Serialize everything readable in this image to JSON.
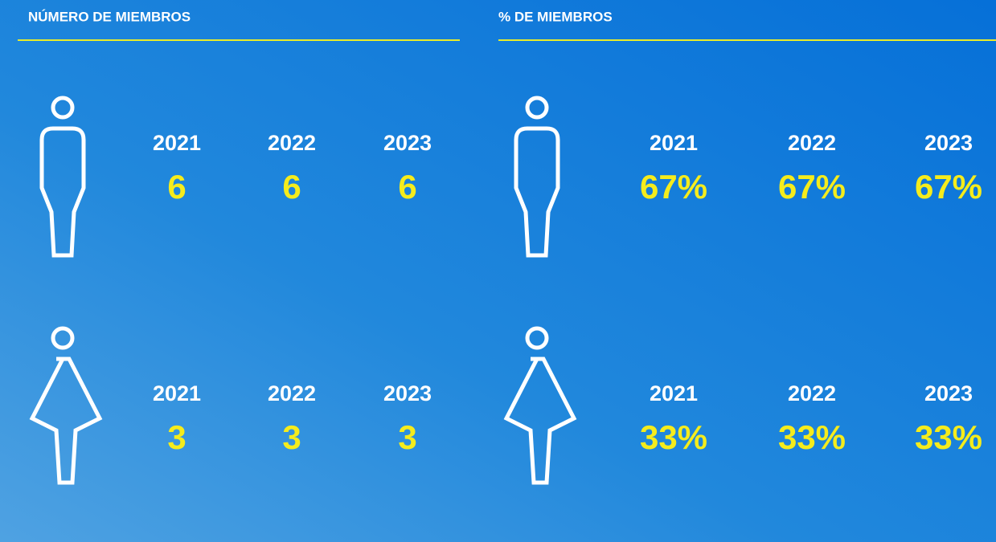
{
  "panels": [
    {
      "title": "NÚMERO DE MIEMBROS",
      "rows": [
        {
          "items": [
            {
              "year": "2021",
              "value": "6"
            },
            {
              "year": "2022",
              "value": "6"
            },
            {
              "year": "2023",
              "value": "6"
            }
          ]
        },
        {
          "items": [
            {
              "year": "2021",
              "value": "3"
            },
            {
              "year": "2022",
              "value": "3"
            },
            {
              "year": "2023",
              "value": "3"
            }
          ]
        }
      ]
    },
    {
      "title": "% DE MIEMBROS",
      "rows": [
        {
          "items": [
            {
              "year": "2021",
              "value": "67%"
            },
            {
              "year": "2022",
              "value": "67%"
            },
            {
              "year": "2023",
              "value": "67%"
            }
          ]
        },
        {
          "items": [
            {
              "year": "2021",
              "value": "33%"
            },
            {
              "year": "2022",
              "value": "33%"
            },
            {
              "year": "2023",
              "value": "33%"
            }
          ]
        }
      ]
    }
  ]
}
